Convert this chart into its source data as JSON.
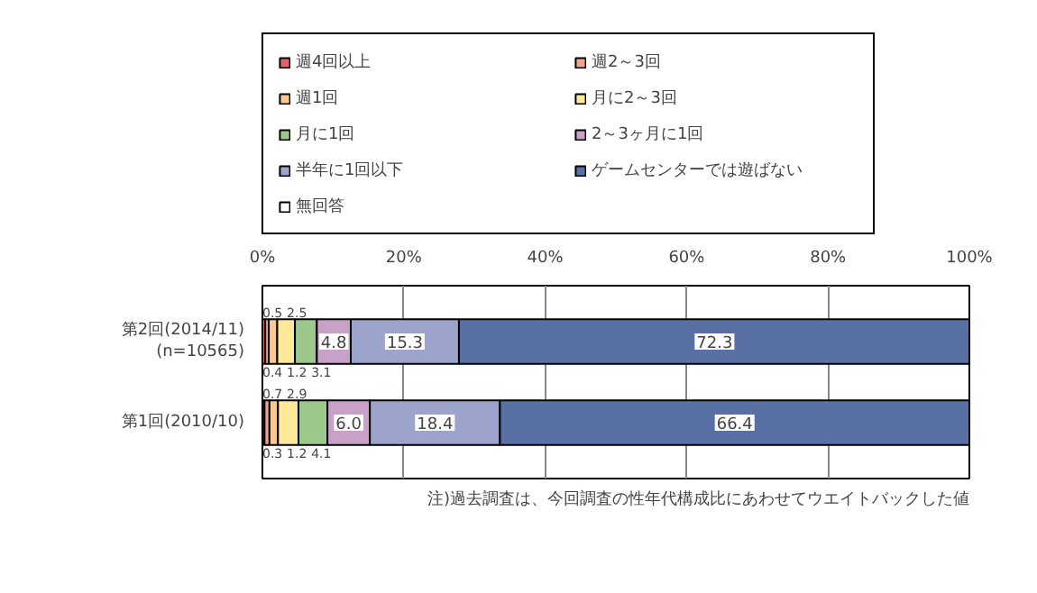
{
  "chart_data": {
    "type": "bar",
    "orientation": "horizontal",
    "stacked": true,
    "categories": [
      "第2回(2014/11)\n(n=10565)",
      "第1回(2010/10)"
    ],
    "series": [
      {
        "name": "週4回以上",
        "color": "#e06666",
        "values": [
          0.4,
          0.3
        ]
      },
      {
        "name": "週2～3回",
        "color": "#f0a48c",
        "values": [
          0.5,
          0.7
        ]
      },
      {
        "name": "週1回",
        "color": "#fcc890",
        "values": [
          1.2,
          1.2
        ]
      },
      {
        "name": "月に2～3回",
        "color": "#ffe898",
        "values": [
          2.5,
          2.9
        ]
      },
      {
        "name": "月に1回",
        "color": "#9cc88c",
        "values": [
          3.1,
          4.1
        ]
      },
      {
        "name": "2～3ヶ月に1回",
        "color": "#c8a0c8",
        "values": [
          4.8,
          6.0
        ],
        "value_labels": [
          "4.8",
          "6.0"
        ]
      },
      {
        "name": "半年に1回以下",
        "color": "#9ca4cc",
        "values": [
          15.3,
          18.4
        ]
      },
      {
        "name": "ゲームセンターでは遊ばない",
        "color": "#5870a4",
        "values": [
          72.3,
          66.4
        ]
      },
      {
        "name": "無回答",
        "color": "#ffffff",
        "values": [
          null,
          null
        ]
      }
    ],
    "xlim": [
      0,
      100
    ],
    "xticks": [
      {
        "value": 0,
        "label": "0%"
      },
      {
        "value": 20,
        "label": "20%"
      },
      {
        "value": 40,
        "label": "40%"
      },
      {
        "value": 60,
        "label": "60%"
      },
      {
        "value": 80,
        "label": "80%"
      },
      {
        "value": 100,
        "label": "100%"
      }
    ],
    "grid": "x",
    "legend": "top",
    "data_labels": true,
    "annotations": [
      "注)過去調査は、今回調査の性年代構成比にあわせてウエイトバックした値"
    ]
  }
}
